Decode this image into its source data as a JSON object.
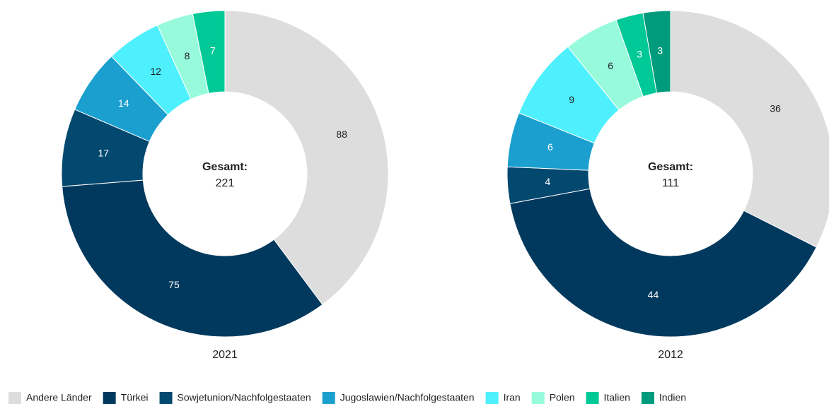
{
  "chart_data": [
    {
      "type": "pie",
      "title": "2021",
      "center_label": "Gesamt:",
      "total": 221,
      "categories": [
        "Andere Länder",
        "Türkei",
        "Sowjetunion/Nachfolgestaaten",
        "Jugoslawien/Nachfolgestaaten",
        "Iran",
        "Polen",
        "Italien",
        "Indien"
      ],
      "values": [
        88,
        75,
        17,
        14,
        12,
        8,
        7,
        0
      ],
      "colors": [
        "#dddddd",
        "#00395d",
        "#03486e",
        "#1b9fcf",
        "#4ff0fd",
        "#97fbdb",
        "#00c896",
        "#009a7c"
      ]
    },
    {
      "type": "pie",
      "title": "2012",
      "center_label": "Gesamt:",
      "total": 111,
      "categories": [
        "Andere Länder",
        "Türkei",
        "Sowjetunion/Nachfolgestaaten",
        "Jugoslawien/Nachfolgestaaten",
        "Iran",
        "Polen",
        "Italien",
        "Indien"
      ],
      "values": [
        36,
        44,
        4,
        6,
        9,
        6,
        3,
        3
      ],
      "colors": [
        "#dddddd",
        "#00395d",
        "#03486e",
        "#1b9fcf",
        "#4ff0fd",
        "#97fbdb",
        "#00c896",
        "#009a7c"
      ]
    }
  ]
}
